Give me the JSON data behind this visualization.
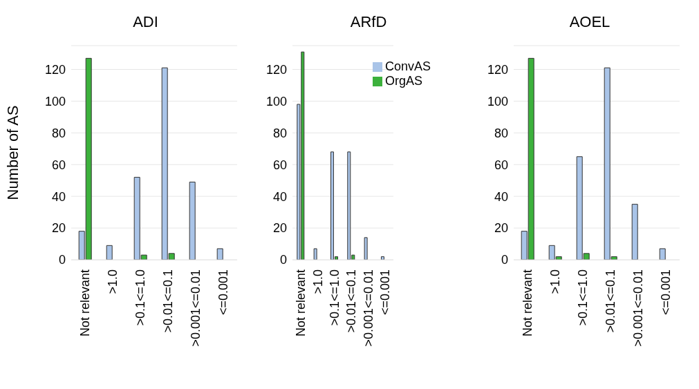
{
  "chart_data": [
    {
      "type": "bar",
      "title": "ADI",
      "ylabel": "Number of AS",
      "categories": [
        "Not relevant",
        ">1.0",
        ">0.1<=1.0",
        ">0.01<=0.1",
        ">0.001<=0.01",
        "<=0.001"
      ],
      "series": [
        {
          "color": "#a9c4e8",
          "values": [
            18,
            9,
            52,
            121,
            49,
            7
          ]
        },
        {
          "color": "#3cb13c",
          "values": [
            127,
            0,
            3,
            4,
            0,
            0
          ]
        }
      ],
      "ylim": [
        0,
        135
      ],
      "yticks": [
        0,
        20,
        40,
        60,
        80,
        100,
        120
      ],
      "grid": "y"
    },
    {
      "type": "bar",
      "title": "ARfD",
      "categories": [
        "Not relevant",
        ">1.0",
        ">0.1<=1.0",
        ">0.01<=0.1",
        ">0.001<=0.01",
        "<=0.001"
      ],
      "series": [
        {
          "name": "ConvAS",
          "color": "#a9c4e8",
          "values": [
            98,
            7,
            68,
            68,
            14,
            2
          ]
        },
        {
          "name": "OrgAS",
          "color": "#3cb13c",
          "values": [
            131,
            0,
            2,
            3,
            0,
            0
          ]
        }
      ],
      "ylim": [
        0,
        135
      ],
      "yticks": [
        0,
        20,
        40,
        60,
        80,
        100,
        120
      ],
      "grid": "y",
      "legend": "top right"
    },
    {
      "type": "bar",
      "title": "AOEL",
      "categories": [
        "Not relevant",
        ">1.0",
        ">0.1<=1.0",
        ">0.01<=0.1",
        ">0.001<=0.01",
        "<=0.001"
      ],
      "series": [
        {
          "color": "#a9c4e8",
          "values": [
            18,
            9,
            65,
            121,
            35,
            7
          ]
        },
        {
          "color": "#3cb13c",
          "values": [
            127,
            2,
            4,
            2,
            0,
            0
          ]
        }
      ],
      "ylim": [
        0,
        135
      ],
      "yticks": [
        0,
        20,
        40,
        60,
        80,
        100,
        120
      ],
      "grid": "y"
    }
  ]
}
